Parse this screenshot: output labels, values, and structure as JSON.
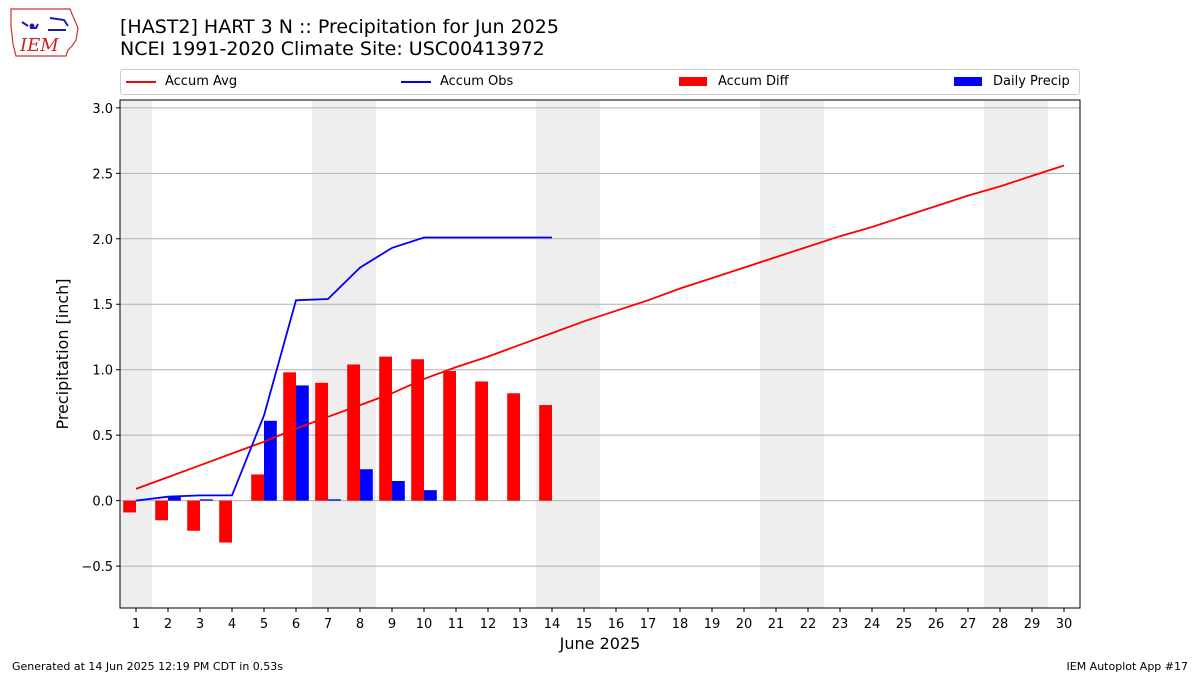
{
  "header": {
    "title_line1": "[HAST2] HART 3 N :: Precipitation for Jun 2025",
    "title_line2": "NCEI 1991-2020 Climate Site: USC00413972",
    "logo_text": "IEM"
  },
  "legend": [
    {
      "label": "Accum Avg",
      "kind": "line",
      "color": "#ff0000"
    },
    {
      "label": "Accum Obs",
      "kind": "line",
      "color": "#0000ff"
    },
    {
      "label": "Accum Diff",
      "kind": "bar",
      "color": "#ff0000"
    },
    {
      "label": "Daily Precip",
      "kind": "bar",
      "color": "#0000ff"
    }
  ],
  "footer": {
    "left": "Generated at 14 Jun 2025 12:19 PM CDT in 0.53s",
    "right": "IEM Autoplot App #17"
  },
  "chart_data": {
    "type": "bar",
    "xlabel": "June 2025",
    "ylabel": "Precipitation [inch]",
    "xlim": [
      0.5,
      30.5
    ],
    "ylim": [
      -0.82,
      3.06
    ],
    "yticks": [
      -0.5,
      0.0,
      0.5,
      1.0,
      1.5,
      2.0,
      2.5,
      3.0
    ],
    "ytick_labels": [
      "−0.5",
      "0.0",
      "0.5",
      "1.0",
      "1.5",
      "2.0",
      "2.5",
      "3.0"
    ],
    "x": [
      1,
      2,
      3,
      4,
      5,
      6,
      7,
      8,
      9,
      10,
      11,
      12,
      13,
      14,
      15,
      16,
      17,
      18,
      19,
      20,
      21,
      22,
      23,
      24,
      25,
      26,
      27,
      28,
      29,
      30
    ],
    "weekend_days": [
      1,
      7,
      8,
      14,
      15,
      21,
      22,
      28,
      29
    ],
    "grid": "horizontal",
    "legend_position": "top",
    "series": [
      {
        "name": "Accum Avg",
        "kind": "line",
        "color": "#ff0000",
        "x": [
          1,
          2,
          3,
          4,
          5,
          6,
          7,
          8,
          9,
          10,
          11,
          12,
          13,
          14,
          15,
          16,
          17,
          18,
          19,
          20,
          21,
          22,
          23,
          24,
          25,
          26,
          27,
          28,
          29,
          30
        ],
        "values": [
          0.09,
          0.18,
          0.27,
          0.36,
          0.45,
          0.55,
          0.64,
          0.73,
          0.82,
          0.93,
          1.02,
          1.1,
          1.19,
          1.28,
          1.37,
          1.45,
          1.53,
          1.62,
          1.7,
          1.78,
          1.86,
          1.94,
          2.02,
          2.09,
          2.17,
          2.25,
          2.33,
          2.4,
          2.48,
          2.56
        ]
      },
      {
        "name": "Accum Obs",
        "kind": "line",
        "color": "#0000ff",
        "x": [
          1,
          2,
          3,
          4,
          5,
          6,
          7,
          8,
          9,
          10,
          11,
          12,
          13,
          14
        ],
        "values": [
          0.0,
          0.03,
          0.04,
          0.04,
          0.65,
          1.53,
          1.54,
          1.78,
          1.93,
          2.01,
          2.01,
          2.01,
          2.01,
          2.01
        ]
      },
      {
        "name": "Accum Diff",
        "kind": "bar",
        "color": "#ff0000",
        "x": [
          1,
          2,
          3,
          4,
          5,
          6,
          7,
          8,
          9,
          10,
          11,
          12,
          13,
          14
        ],
        "values": [
          -0.09,
          -0.15,
          -0.23,
          -0.32,
          0.2,
          0.98,
          0.9,
          1.04,
          1.1,
          1.08,
          0.99,
          0.91,
          0.82,
          0.73
        ]
      },
      {
        "name": "Daily Precip",
        "kind": "bar",
        "color": "#0000ff",
        "x": [
          1,
          2,
          3,
          4,
          5,
          6,
          7,
          8,
          9,
          10,
          11,
          12,
          13,
          14
        ],
        "values": [
          0.0,
          0.03,
          0.01,
          0.0,
          0.61,
          0.88,
          0.01,
          0.24,
          0.15,
          0.08,
          0.0,
          0.0,
          0.0,
          0.0
        ]
      }
    ]
  }
}
